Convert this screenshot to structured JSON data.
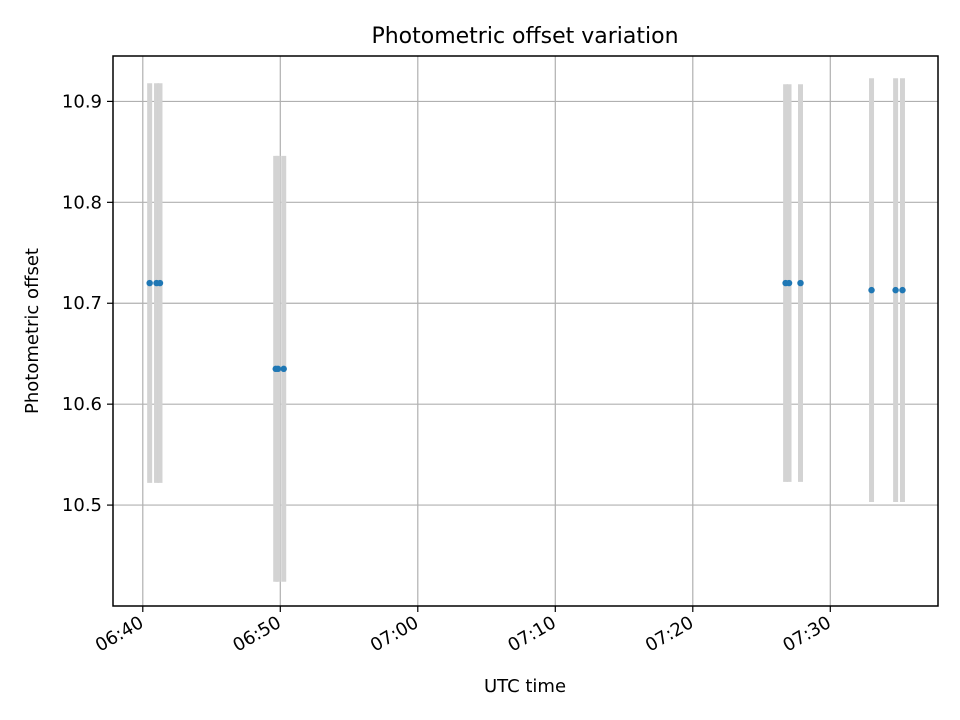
{
  "chart_data": {
    "type": "scatter",
    "title": "Photometric offset variation",
    "xlabel": "UTC time",
    "ylabel": "Photometric offset",
    "x_ticks": [
      "06:40",
      "06:50",
      "07:00",
      "07:10",
      "07:20",
      "07:30"
    ],
    "xlim": [
      "06:37:50",
      "07:37:50"
    ],
    "y_ticks": [
      "10.5",
      "10.6",
      "10.7",
      "10.8",
      "10.9"
    ],
    "ylim": [
      10.4,
      10.945
    ],
    "grid": true,
    "series": [
      {
        "marker_color": "#1f77b4",
        "errorbar_color": "#d3d3d3",
        "points": [
          {
            "x": "06:40:30",
            "y": 10.72,
            "err": 0.198
          },
          {
            "x": "06:41:00",
            "y": 10.72,
            "err": 0.198
          },
          {
            "x": "06:41:15",
            "y": 10.72,
            "err": 0.198
          },
          {
            "x": "06:49:40",
            "y": 10.635,
            "err": 0.211
          },
          {
            "x": "06:49:50",
            "y": 10.635,
            "err": 0.211
          },
          {
            "x": "06:50:15",
            "y": 10.635,
            "err": 0.211
          },
          {
            "x": "07:26:45",
            "y": 10.72,
            "err": 0.197
          },
          {
            "x": "07:27:00",
            "y": 10.72,
            "err": 0.197
          },
          {
            "x": "07:27:50",
            "y": 10.72,
            "err": 0.197
          },
          {
            "x": "07:33:00",
            "y": 10.713,
            "err": 0.21
          },
          {
            "x": "07:34:45",
            "y": 10.713,
            "err": 0.21
          },
          {
            "x": "07:35:15",
            "y": 10.713,
            "err": 0.21
          }
        ]
      }
    ]
  }
}
